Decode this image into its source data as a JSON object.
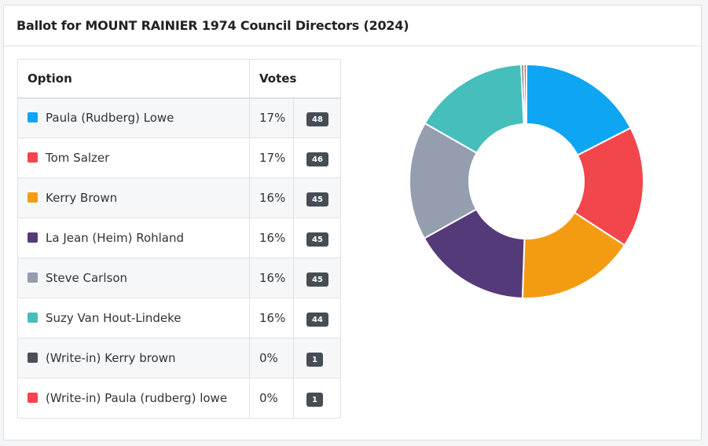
{
  "card": {
    "title": "Ballot for MOUNT RAINIER 1974 Council Directors (2024)"
  },
  "table": {
    "headers": {
      "option": "Option",
      "votes": "Votes"
    },
    "rows": [
      {
        "name": "Paula (Rudberg) Lowe",
        "pct": "17%",
        "count": "48",
        "color": "#0ea5f2"
      },
      {
        "name": "Tom Salzer",
        "pct": "17%",
        "count": "46",
        "color": "#f2454c"
      },
      {
        "name": "Kerry Brown",
        "pct": "16%",
        "count": "45",
        "color": "#f39c12"
      },
      {
        "name": "La Jean (Heim) Rohland",
        "pct": "16%",
        "count": "45",
        "color": "#553a79"
      },
      {
        "name": "Steve Carlson",
        "pct": "16%",
        "count": "45",
        "color": "#949eae"
      },
      {
        "name": "Suzy Van Hout-Lindeke",
        "pct": "16%",
        "count": "44",
        "color": "#46bebc"
      },
      {
        "name": "(Write-in) Kerry brown",
        "pct": "0%",
        "count": "1",
        "color": "#4a4f58"
      },
      {
        "name": "(Write-in) Paula (rudberg) lowe",
        "pct": "0%",
        "count": "1",
        "color": "#f2454c"
      }
    ]
  },
  "chart_data": {
    "type": "pie",
    "donut": true,
    "categories": [
      "Paula (Rudberg) Lowe",
      "Tom Salzer",
      "Kerry Brown",
      "La Jean (Heim) Rohland",
      "Steve Carlson",
      "Suzy Van Hout-Lindeke",
      "(Write-in) Kerry brown",
      "(Write-in) Paula (rudberg) lowe"
    ],
    "values": [
      48,
      46,
      45,
      45,
      45,
      44,
      1,
      1
    ],
    "colors": [
      "#0ea5f2",
      "#f2454c",
      "#f39c12",
      "#553a79",
      "#949eae",
      "#46bebc",
      "#4a4f58",
      "#f2454c"
    ]
  }
}
